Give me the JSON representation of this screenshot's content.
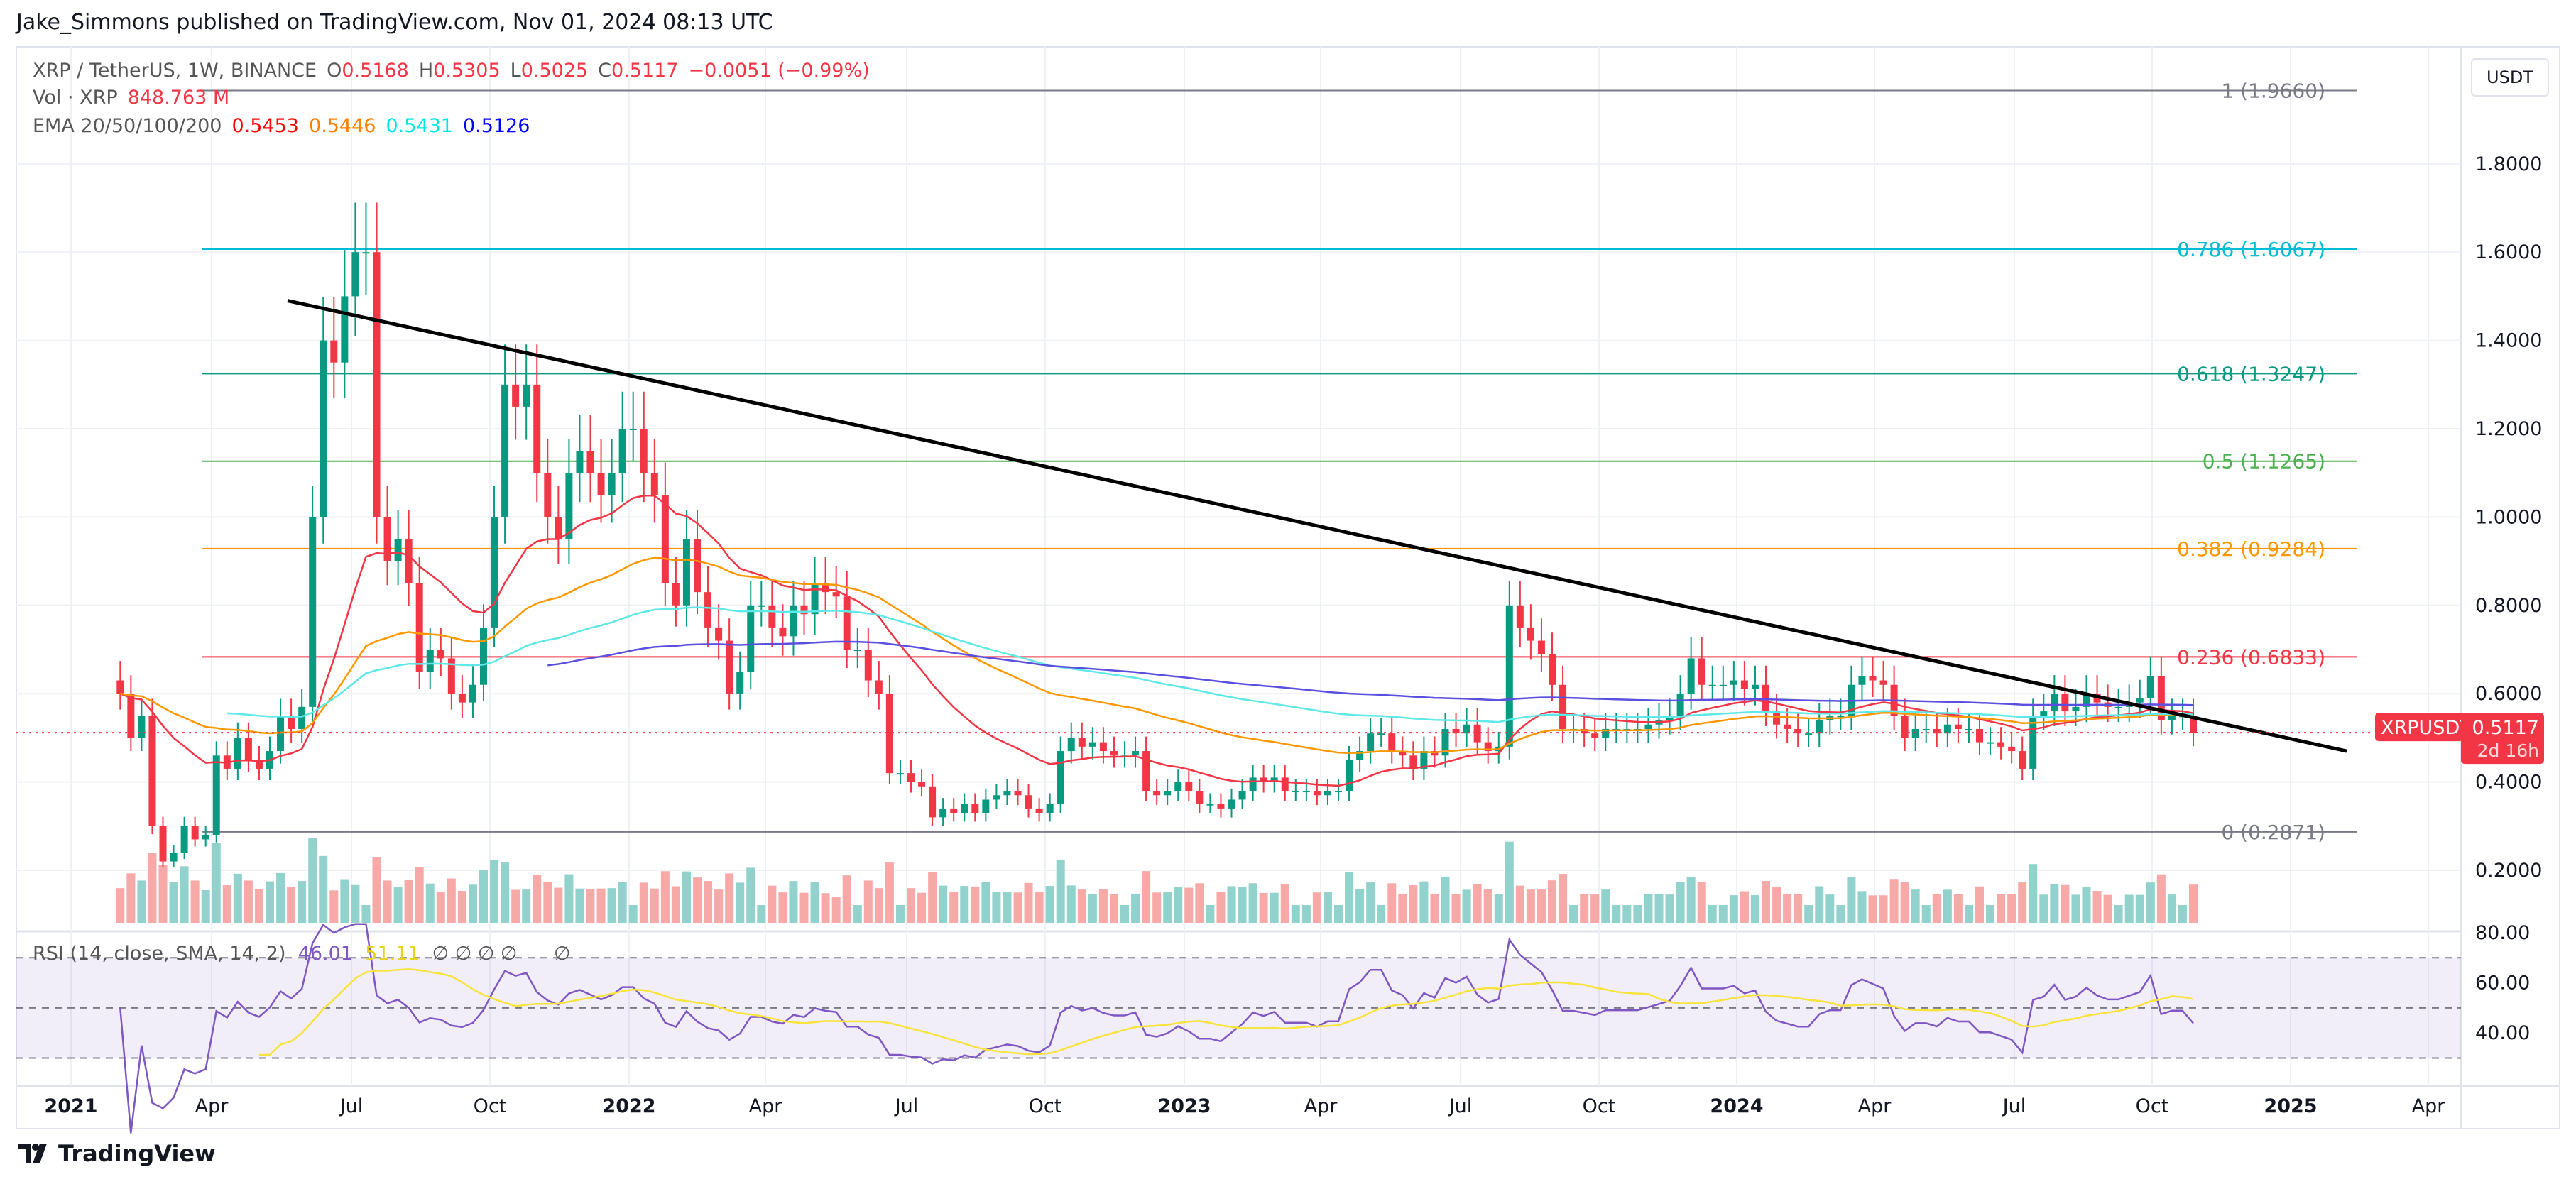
{
  "header": {
    "published": "Jake_Simmons published on TradingView.com, Nov 01, 2024 08:13 UTC"
  },
  "legend": {
    "symbol": "XRP / TetherUS, 1W, BINANCE",
    "o_label": "O",
    "o": "0.5168",
    "h_label": "H",
    "h": "0.5305",
    "l_label": "L",
    "l": "0.5025",
    "c_label": "C",
    "c": "0.5117",
    "change": "−0.0051 (−0.99%)",
    "vol_label": "Vol · XRP",
    "vol": "848.763 M",
    "ema_label": "EMA 20/50/100/200",
    "ema_values": [
      "0.5453",
      "0.5446",
      "0.5431",
      "0.5126"
    ],
    "ema_colors": [
      "#ff0000",
      "#ff8000",
      "#00ffff",
      "#0000ff"
    ]
  },
  "rsi_legend": {
    "label": "RSI (14, close, SMA, 14, 2)",
    "rsi": "46.01",
    "sma": "51.11",
    "nulls": "∅ ∅ ∅ ∅",
    "null2": "∅"
  },
  "currency_button": "USDT",
  "last_price": {
    "symbol": "XRPUSDT",
    "price": "0.5117",
    "countdown": "2d 16h",
    "color": "#f23645"
  },
  "branding": "TradingView",
  "colors": {
    "up": "#089981",
    "down": "#f23645",
    "vol_up": "#92d2cc",
    "vol_down": "#f7a9a7",
    "rsi": "#7e57c2",
    "rsi_sma": "#f7e33b",
    "trendline": "#000000"
  },
  "chart_data": {
    "type": "candlestick",
    "interval": "1W",
    "price_axis": {
      "ticks": [
        "1.8000",
        "1.6000",
        "1.4000",
        "1.2000",
        "1.0000",
        "0.8000",
        "0.6000",
        "0.4000",
        "0.2000"
      ],
      "ylim": [
        0.12,
        2.0
      ]
    },
    "time_axis": {
      "ticks": [
        "2021",
        "Apr",
        "Jul",
        "Oct",
        "2022",
        "Apr",
        "Jul",
        "Oct",
        "2023",
        "Apr",
        "Jul",
        "Oct",
        "2024",
        "Apr",
        "Jul",
        "Oct",
        "2025",
        "Apr"
      ]
    },
    "rsi_axis": {
      "ticks": [
        "80.00",
        "60.00",
        "40.00"
      ]
    },
    "weekly_closes": [
      0.6,
      0.5,
      0.55,
      0.3,
      0.22,
      0.24,
      0.3,
      0.27,
      0.28,
      0.46,
      0.43,
      0.5,
      0.45,
      0.43,
      0.47,
      0.55,
      0.52,
      0.57,
      1.0,
      1.4,
      1.35,
      1.5,
      1.6,
      1.6,
      1.0,
      0.9,
      0.95,
      0.85,
      0.65,
      0.7,
      0.68,
      0.6,
      0.58,
      0.62,
      0.75,
      1.0,
      1.3,
      1.25,
      1.3,
      1.1,
      1.0,
      0.95,
      1.1,
      1.15,
      1.1,
      1.05,
      1.1,
      1.2,
      1.2,
      1.1,
      1.05,
      0.85,
      0.8,
      0.95,
      0.83,
      0.75,
      0.72,
      0.6,
      0.65,
      0.8,
      0.8,
      0.75,
      0.73,
      0.8,
      0.78,
      0.85,
      0.83,
      0.82,
      0.7,
      0.7,
      0.63,
      0.6,
      0.42,
      0.42,
      0.4,
      0.39,
      0.32,
      0.34,
      0.33,
      0.35,
      0.33,
      0.36,
      0.37,
      0.38,
      0.37,
      0.34,
      0.33,
      0.35,
      0.47,
      0.5,
      0.48,
      0.49,
      0.47,
      0.46,
      0.46,
      0.47,
      0.38,
      0.37,
      0.38,
      0.4,
      0.38,
      0.35,
      0.35,
      0.34,
      0.36,
      0.38,
      0.41,
      0.4,
      0.41,
      0.38,
      0.38,
      0.38,
      0.37,
      0.38,
      0.38,
      0.45,
      0.47,
      0.51,
      0.51,
      0.47,
      0.46,
      0.43,
      0.47,
      0.46,
      0.52,
      0.51,
      0.53,
      0.49,
      0.47,
      0.48,
      0.8,
      0.75,
      0.72,
      0.69,
      0.62,
      0.52,
      0.52,
      0.51,
      0.5,
      0.52,
      0.52,
      0.52,
      0.52,
      0.53,
      0.54,
      0.55,
      0.6,
      0.68,
      0.62,
      0.62,
      0.62,
      0.63,
      0.61,
      0.62,
      0.56,
      0.53,
      0.52,
      0.51,
      0.51,
      0.54,
      0.55,
      0.55,
      0.62,
      0.64,
      0.63,
      0.62,
      0.55,
      0.5,
      0.52,
      0.52,
      0.51,
      0.53,
      0.52,
      0.52,
      0.49,
      0.49,
      0.48,
      0.47,
      0.43,
      0.55,
      0.56,
      0.6,
      0.56,
      0.57,
      0.6,
      0.58,
      0.57,
      0.57,
      0.58,
      0.59,
      0.64,
      0.54,
      0.55,
      0.55,
      0.5117
    ],
    "fib_levels": [
      {
        "label": "1 (1.9660)",
        "price": 1.966,
        "color": "#787b86"
      },
      {
        "label": "0.786 (1.6067)",
        "price": 1.6067,
        "color": "#00bcd4"
      },
      {
        "label": "0.618 (1.3247)",
        "price": 1.3247,
        "color": "#089981"
      },
      {
        "label": "0.5 (1.1265)",
        "price": 1.1265,
        "color": "#4caf50"
      },
      {
        "label": "0.382 (0.9284)",
        "price": 0.9284,
        "color": "#ff9800"
      },
      {
        "label": "0.236 (0.6833)",
        "price": 0.6833,
        "color": "#f23645"
      },
      {
        "label": "0 (0.2871)",
        "price": 0.2871,
        "color": "#787b86"
      }
    ],
    "trendline": {
      "start_price": 1.49,
      "end_price": 0.47
    }
  }
}
